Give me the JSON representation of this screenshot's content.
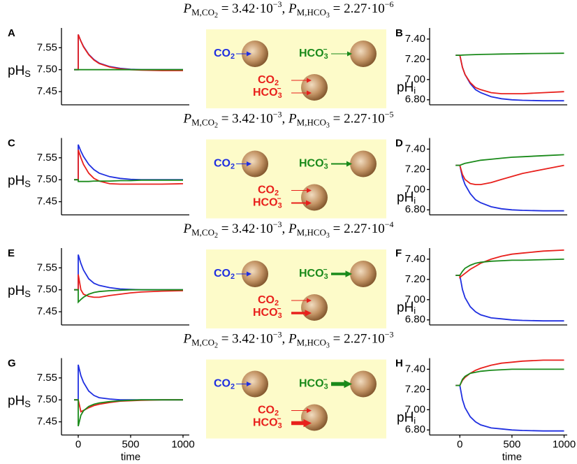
{
  "chart_data": [
    {
      "type": "line",
      "panel": "A",
      "title": [
        "P",
        "M,CO",
        "2",
        " = 3.42·10",
        "−3",
        ", ",
        "P",
        "M,HCO",
        "3",
        " = 2.27·10",
        "−6"
      ],
      "ylabel": [
        "pH",
        "S"
      ],
      "x": [
        -40,
        0,
        0,
        25,
        50,
        100,
        150,
        200,
        300,
        400,
        500,
        600,
        800,
        1000
      ],
      "xlim": [
        -160,
        1060
      ],
      "ylim": [
        7.42,
        7.595
      ],
      "yticks": [
        7.45,
        {
          "value": 7.5,
          "label": "7.50"
        },
        7.55
      ],
      "series": [
        {
          "color": "#1f2fe0",
          "values": [
            7.5,
            7.5,
            7.58,
            7.565,
            7.553,
            7.535,
            7.523,
            7.515,
            7.507,
            7.503,
            7.501,
            7.5,
            7.5,
            7.5
          ]
        },
        {
          "color": "#e8201c",
          "values": [
            7.5,
            7.5,
            7.58,
            7.565,
            7.552,
            7.534,
            7.522,
            7.514,
            7.506,
            7.502,
            7.5,
            7.499,
            7.498,
            7.498
          ]
        },
        {
          "color": "#1a8a1a",
          "values": [
            7.5,
            7.5,
            7.5,
            7.5,
            7.5,
            7.5,
            7.5,
            7.5,
            7.5,
            7.5,
            7.5,
            7.5,
            7.5,
            7.5
          ]
        }
      ]
    },
    {
      "type": "line",
      "panel": "B",
      "ylabel": [
        "pH",
        "i"
      ],
      "x": [
        -40,
        0,
        0,
        25,
        50,
        100,
        150,
        200,
        300,
        400,
        500,
        600,
        800,
        1000
      ],
      "xlim": [
        -290,
        1030
      ],
      "ylim": [
        6.75,
        7.51
      ],
      "yticks": [
        {
          "value": 6.8,
          "label": "6.80"
        },
        {
          "value": 7.0,
          "label": "7.00"
        },
        {
          "value": 7.2,
          "label": "7.20"
        },
        {
          "value": 7.4,
          "label": "7.40"
        }
      ],
      "series": [
        {
          "color": "#1f2fe0",
          "values": [
            7.24,
            7.24,
            7.24,
            7.12,
            7.05,
            6.96,
            6.9,
            6.87,
            6.83,
            6.81,
            6.8,
            6.795,
            6.79,
            6.79
          ]
        },
        {
          "color": "#e8201c",
          "values": [
            7.24,
            7.24,
            7.24,
            7.12,
            7.05,
            6.97,
            6.92,
            6.9,
            6.87,
            6.86,
            6.86,
            6.86,
            6.87,
            6.88
          ]
        },
        {
          "color": "#1a8a1a",
          "values": [
            7.24,
            7.24,
            7.24,
            7.242,
            7.243,
            7.245,
            7.247,
            7.248,
            7.25,
            7.252,
            7.254,
            7.256,
            7.258,
            7.26
          ]
        }
      ]
    },
    {
      "type": "line",
      "panel": "C",
      "title": [
        "P",
        "M,CO",
        "2",
        " = 3.42·10",
        "−3",
        ", ",
        "P",
        "M,HCO",
        "3",
        " = 2.27·10",
        "−5"
      ],
      "ylabel": [
        "pH",
        "S"
      ],
      "x": [
        -40,
        0,
        0,
        25,
        50,
        100,
        150,
        200,
        300,
        400,
        500,
        600,
        800,
        1000
      ],
      "xlim": [
        -160,
        1060
      ],
      "ylim": [
        7.42,
        7.595
      ],
      "yticks": [
        7.45,
        {
          "value": 7.5,
          "label": "7.50"
        },
        7.55
      ],
      "series": [
        {
          "color": "#1f2fe0",
          "values": [
            7.5,
            7.5,
            7.58,
            7.565,
            7.553,
            7.535,
            7.523,
            7.515,
            7.507,
            7.503,
            7.501,
            7.5,
            7.5,
            7.5
          ]
        },
        {
          "color": "#e8201c",
          "values": [
            7.5,
            7.5,
            7.568,
            7.55,
            7.535,
            7.515,
            7.503,
            7.497,
            7.491,
            7.49,
            7.49,
            7.49,
            7.49,
            7.491
          ]
        },
        {
          "color": "#1a8a1a",
          "values": [
            7.5,
            7.5,
            7.496,
            7.496,
            7.496,
            7.496,
            7.497,
            7.497,
            7.497,
            7.498,
            7.498,
            7.499,
            7.499,
            7.499
          ]
        }
      ]
    },
    {
      "type": "line",
      "panel": "D",
      "ylabel": [
        "pH",
        "i"
      ],
      "x": [
        -40,
        0,
        0,
        25,
        50,
        100,
        150,
        200,
        300,
        400,
        500,
        600,
        800,
        1000
      ],
      "xlim": [
        -290,
        1030
      ],
      "ylim": [
        6.75,
        7.51
      ],
      "yticks": [
        {
          "value": 6.8,
          "label": "6.80"
        },
        {
          "value": 7.0,
          "label": "7.00"
        },
        {
          "value": 7.2,
          "label": "7.20"
        },
        {
          "value": 7.4,
          "label": "7.40"
        }
      ],
      "series": [
        {
          "color": "#1f2fe0",
          "values": [
            7.24,
            7.24,
            7.24,
            7.12,
            7.05,
            6.96,
            6.9,
            6.87,
            6.83,
            6.81,
            6.8,
            6.795,
            6.79,
            6.79
          ]
        },
        {
          "color": "#e8201c",
          "values": [
            7.24,
            7.24,
            7.24,
            7.15,
            7.1,
            7.06,
            7.05,
            7.05,
            7.07,
            7.1,
            7.13,
            7.16,
            7.2,
            7.24
          ]
        },
        {
          "color": "#1a8a1a",
          "values": [
            7.24,
            7.24,
            7.24,
            7.25,
            7.26,
            7.27,
            7.28,
            7.29,
            7.3,
            7.31,
            7.32,
            7.325,
            7.335,
            7.345
          ]
        }
      ]
    },
    {
      "type": "line",
      "panel": "E",
      "title": [
        "P",
        "M,CO",
        "2",
        " = 3.42·10",
        "−3",
        ", ",
        "P",
        "M,HCO",
        "3",
        " = 2.27·10",
        "−4"
      ],
      "ylabel": [
        "pH",
        "S"
      ],
      "x": [
        -40,
        0,
        0,
        25,
        50,
        100,
        150,
        200,
        300,
        400,
        500,
        600,
        800,
        1000
      ],
      "xlim": [
        -160,
        1060
      ],
      "ylim": [
        7.42,
        7.595
      ],
      "yticks": [
        7.45,
        {
          "value": 7.5,
          "label": "7.50"
        },
        7.55
      ],
      "series": [
        {
          "color": "#1f2fe0",
          "values": [
            7.5,
            7.5,
            7.58,
            7.56,
            7.545,
            7.525,
            7.515,
            7.51,
            7.505,
            7.502,
            7.501,
            7.5,
            7.5,
            7.5
          ]
        },
        {
          "color": "#e8201c",
          "values": [
            7.5,
            7.5,
            7.535,
            7.5,
            7.49,
            7.485,
            7.483,
            7.483,
            7.487,
            7.49,
            7.493,
            7.495,
            7.497,
            7.498
          ]
        },
        {
          "color": "#1a8a1a",
          "values": [
            7.5,
            7.5,
            7.472,
            7.478,
            7.483,
            7.49,
            7.494,
            7.496,
            7.498,
            7.499,
            7.5,
            7.5,
            7.5,
            7.5
          ]
        }
      ]
    },
    {
      "type": "line",
      "panel": "F",
      "ylabel": [
        "pH",
        "i"
      ],
      "x": [
        -40,
        0,
        0,
        25,
        50,
        100,
        150,
        200,
        300,
        400,
        500,
        600,
        800,
        1000
      ],
      "xlim": [
        -290,
        1030
      ],
      "ylim": [
        6.75,
        7.51
      ],
      "yticks": [
        {
          "value": 6.8,
          "label": "6.80"
        },
        {
          "value": 7.0,
          "label": "7.00"
        },
        {
          "value": 7.2,
          "label": "7.20"
        },
        {
          "value": 7.4,
          "label": "7.40"
        }
      ],
      "series": [
        {
          "color": "#1f2fe0",
          "values": [
            7.24,
            7.24,
            7.24,
            7.1,
            7.02,
            6.93,
            6.88,
            6.85,
            6.82,
            6.81,
            6.8,
            6.795,
            6.79,
            6.79
          ]
        },
        {
          "color": "#e8201c",
          "values": [
            7.24,
            7.24,
            7.22,
            7.24,
            7.26,
            7.3,
            7.33,
            7.36,
            7.4,
            7.43,
            7.45,
            7.46,
            7.48,
            7.49
          ]
        },
        {
          "color": "#1a8a1a",
          "values": [
            7.24,
            7.24,
            7.24,
            7.28,
            7.31,
            7.34,
            7.36,
            7.37,
            7.38,
            7.385,
            7.39,
            7.39,
            7.395,
            7.4
          ]
        }
      ]
    },
    {
      "type": "line",
      "panel": "G",
      "title": [
        "P",
        "M,CO",
        "2",
        " = 3.42·10",
        "−3",
        ", ",
        "P",
        "M,HCO",
        "3",
        " = 2.27·10",
        "−3"
      ],
      "ylabel": [
        "pH",
        "S"
      ],
      "xlabel": "time",
      "x": [
        -40,
        0,
        0,
        25,
        50,
        100,
        150,
        200,
        300,
        400,
        500,
        600,
        800,
        1000
      ],
      "xlim": [
        -160,
        1060
      ],
      "ylim": [
        7.42,
        7.595
      ],
      "xticks": [
        0,
        500,
        1000
      ],
      "yticks": [
        7.45,
        {
          "value": 7.5,
          "label": "7.50"
        },
        7.55
      ],
      "series": [
        {
          "color": "#1f2fe0",
          "values": [
            7.5,
            7.5,
            7.58,
            7.555,
            7.54,
            7.52,
            7.51,
            7.505,
            7.502,
            7.5,
            7.5,
            7.5,
            7.5,
            7.5
          ]
        },
        {
          "color": "#e8201c",
          "values": [
            7.5,
            7.5,
            7.5,
            7.473,
            7.476,
            7.482,
            7.487,
            7.49,
            7.494,
            7.497,
            7.498,
            7.499,
            7.5,
            7.5
          ]
        },
        {
          "color": "#1a8a1a",
          "values": [
            7.5,
            7.5,
            7.44,
            7.465,
            7.475,
            7.485,
            7.49,
            7.493,
            7.496,
            7.498,
            7.499,
            7.5,
            7.5,
            7.5
          ]
        }
      ]
    },
    {
      "type": "line",
      "panel": "H",
      "ylabel": [
        "pH",
        "i"
      ],
      "xlabel": "time",
      "x": [
        -40,
        0,
        0,
        25,
        50,
        100,
        150,
        200,
        300,
        400,
        500,
        600,
        800,
        1000
      ],
      "xlim": [
        -290,
        1030
      ],
      "ylim": [
        6.75,
        7.51
      ],
      "xticks": [
        0,
        500,
        1000
      ],
      "yticks": [
        {
          "value": 6.8,
          "label": "6.80"
        },
        {
          "value": 7.0,
          "label": "7.00"
        },
        {
          "value": 7.2,
          "label": "7.20"
        },
        {
          "value": 7.4,
          "label": "7.40"
        }
      ],
      "series": [
        {
          "color": "#1f2fe0",
          "values": [
            7.24,
            7.24,
            7.24,
            7.1,
            7.02,
            6.93,
            6.88,
            6.85,
            6.82,
            6.81,
            6.8,
            6.795,
            6.79,
            6.79
          ]
        },
        {
          "color": "#e8201c",
          "values": [
            7.24,
            7.24,
            7.24,
            7.29,
            7.32,
            7.36,
            7.39,
            7.41,
            7.44,
            7.46,
            7.47,
            7.48,
            7.49,
            7.49
          ]
        },
        {
          "color": "#1a8a1a",
          "values": [
            7.24,
            7.24,
            7.24,
            7.3,
            7.33,
            7.36,
            7.37,
            7.38,
            7.39,
            7.395,
            7.4,
            7.4,
            7.4,
            7.4
          ]
        }
      ]
    }
  ],
  "diagrams": [
    {
      "blue": [
        "CO",
        "2"
      ],
      "green": [
        "HCO",
        "3",
        "−"
      ],
      "red_top": [
        "CO",
        "2"
      ],
      "red_bottom": [
        "HCO",
        "3",
        "−"
      ]
    },
    {
      "blue": [
        "CO",
        "2"
      ],
      "green": [
        "HCO",
        "3",
        "−"
      ],
      "red_top": [
        "CO",
        "2"
      ],
      "red_bottom": [
        "HCO",
        "3",
        "−"
      ]
    },
    {
      "blue": [
        "CO",
        "2"
      ],
      "green": [
        "HCO",
        "3",
        "−"
      ],
      "red_top": [
        "CO",
        "2"
      ],
      "red_bottom": [
        "HCO",
        "3",
        "−"
      ]
    },
    {
      "blue": [
        "CO",
        "2"
      ],
      "green": [
        "HCO",
        "3",
        "−"
      ],
      "red_top": [
        "CO",
        "2"
      ],
      "red_bottom": [
        "HCO",
        "3",
        "−"
      ]
    }
  ]
}
